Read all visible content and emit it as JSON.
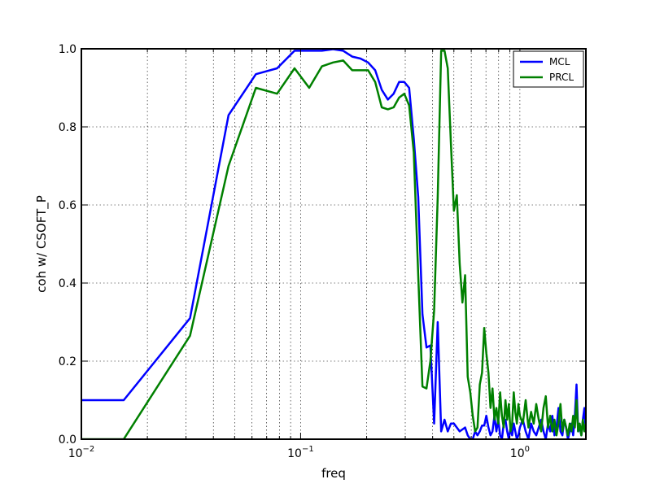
{
  "chart_data": {
    "type": "line",
    "xlabel": "freq",
    "ylabel": "coh w/ CSOFT_P",
    "xscale": "log",
    "xlim": [
      0.01,
      2.0
    ],
    "ylim": [
      0.0,
      1.0
    ],
    "grid": true,
    "legend_position": "top-right",
    "x_major_ticks": [
      {
        "value": 0.01,
        "base": "10",
        "exp": "−2"
      },
      {
        "value": 0.1,
        "base": "10",
        "exp": "−1"
      },
      {
        "value": 1.0,
        "base": "10",
        "exp": "0"
      }
    ],
    "y_ticks": [
      {
        "value": 0.0,
        "label": "0.0"
      },
      {
        "value": 0.2,
        "label": "0.2"
      },
      {
        "value": 0.4,
        "label": "0.4"
      },
      {
        "value": 0.6,
        "label": "0.6"
      },
      {
        "value": 0.8,
        "label": "0.8"
      },
      {
        "value": 1.0,
        "label": "1.0"
      }
    ],
    "series": [
      {
        "name": "MCL",
        "color": "#0000ff",
        "points": [
          [
            0.01,
            0.1
          ],
          [
            0.0156,
            0.1
          ],
          [
            0.0313,
            0.31
          ],
          [
            0.0469,
            0.83
          ],
          [
            0.0625,
            0.935
          ],
          [
            0.0781,
            0.95
          ],
          [
            0.0938,
            0.995
          ],
          [
            0.1094,
            0.995
          ],
          [
            0.125,
            0.995
          ],
          [
            0.1406,
            0.999
          ],
          [
            0.1563,
            0.995
          ],
          [
            0.1719,
            0.98
          ],
          [
            0.1875,
            0.975
          ],
          [
            0.2031,
            0.965
          ],
          [
            0.2188,
            0.945
          ],
          [
            0.2344,
            0.895
          ],
          [
            0.25,
            0.87
          ],
          [
            0.2656,
            0.885
          ],
          [
            0.2813,
            0.915
          ],
          [
            0.2969,
            0.915
          ],
          [
            0.3125,
            0.9
          ],
          [
            0.3281,
            0.77
          ],
          [
            0.3438,
            0.62
          ],
          [
            0.3594,
            0.32
          ],
          [
            0.375,
            0.235
          ],
          [
            0.3906,
            0.24
          ],
          [
            0.4063,
            0.04
          ],
          [
            0.4219,
            0.3
          ],
          [
            0.4375,
            0.02
          ],
          [
            0.4531,
            0.05
          ],
          [
            0.4688,
            0.02
          ],
          [
            0.4844,
            0.04
          ],
          [
            0.5,
            0.04
          ],
          [
            0.5156,
            0.03
          ],
          [
            0.5313,
            0.02
          ],
          [
            0.5469,
            0.025
          ],
          [
            0.5625,
            0.03
          ],
          [
            0.5781,
            0.01
          ],
          [
            0.5938,
            0.0
          ],
          [
            0.6094,
            0.0
          ],
          [
            0.625,
            0.02
          ],
          [
            0.6406,
            0.01
          ],
          [
            0.6563,
            0.02
          ],
          [
            0.6719,
            0.035
          ],
          [
            0.6875,
            0.035
          ],
          [
            0.7031,
            0.06
          ],
          [
            0.7188,
            0.03
          ],
          [
            0.7344,
            0.01
          ],
          [
            0.75,
            0.02
          ],
          [
            0.7656,
            0.06
          ],
          [
            0.7813,
            0.02
          ],
          [
            0.7969,
            0.05
          ],
          [
            0.8125,
            0.01
          ],
          [
            0.8281,
            0.0
          ],
          [
            0.8438,
            0.04
          ],
          [
            0.8594,
            0.05
          ],
          [
            0.875,
            0.02
          ],
          [
            0.8906,
            0.0
          ],
          [
            0.9063,
            0.03
          ],
          [
            0.9219,
            0.01
          ],
          [
            0.9375,
            0.04
          ],
          [
            0.9531,
            0.02
          ],
          [
            0.9688,
            0.0
          ],
          [
            0.9844,
            0.01
          ],
          [
            1.0,
            0.03
          ],
          [
            1.0313,
            0.05
          ],
          [
            1.0625,
            0.02
          ],
          [
            1.0938,
            0.0
          ],
          [
            1.125,
            0.04
          ],
          [
            1.1563,
            0.02
          ],
          [
            1.1875,
            0.01
          ],
          [
            1.2188,
            0.03
          ],
          [
            1.25,
            0.05
          ],
          [
            1.2813,
            0.02
          ],
          [
            1.3125,
            0.0
          ],
          [
            1.3438,
            0.04
          ],
          [
            1.375,
            0.02
          ],
          [
            1.4063,
            0.06
          ],
          [
            1.4375,
            0.01
          ],
          [
            1.4688,
            0.03
          ],
          [
            1.5,
            0.08
          ],
          [
            1.5313,
            0.02
          ],
          [
            1.5625,
            0.01
          ],
          [
            1.5938,
            0.05
          ],
          [
            1.625,
            0.03
          ],
          [
            1.6563,
            0.0
          ],
          [
            1.6875,
            0.02
          ],
          [
            1.7188,
            0.04
          ],
          [
            1.75,
            0.01
          ],
          [
            1.7813,
            0.06
          ],
          [
            1.8125,
            0.14
          ],
          [
            1.8438,
            0.02
          ],
          [
            1.875,
            0.03
          ],
          [
            1.9063,
            0.01
          ],
          [
            1.9375,
            0.05
          ],
          [
            1.9688,
            0.08
          ],
          [
            2.0,
            0.02
          ]
        ]
      },
      {
        "name": "PRCL",
        "color": "#008000",
        "points": [
          [
            0.01,
            0.0
          ],
          [
            0.0156,
            0.0
          ],
          [
            0.0313,
            0.265
          ],
          [
            0.0469,
            0.7
          ],
          [
            0.0625,
            0.9
          ],
          [
            0.0781,
            0.885
          ],
          [
            0.0938,
            0.95
          ],
          [
            0.1094,
            0.9
          ],
          [
            0.125,
            0.955
          ],
          [
            0.1406,
            0.965
          ],
          [
            0.1563,
            0.97
          ],
          [
            0.1719,
            0.945
          ],
          [
            0.1875,
            0.945
          ],
          [
            0.2031,
            0.945
          ],
          [
            0.2188,
            0.915
          ],
          [
            0.2344,
            0.85
          ],
          [
            0.25,
            0.845
          ],
          [
            0.2656,
            0.85
          ],
          [
            0.2813,
            0.875
          ],
          [
            0.2969,
            0.885
          ],
          [
            0.3125,
            0.855
          ],
          [
            0.3281,
            0.735
          ],
          [
            0.3438,
            0.42
          ],
          [
            0.3594,
            0.135
          ],
          [
            0.375,
            0.13
          ],
          [
            0.3906,
            0.2
          ],
          [
            0.4063,
            0.33
          ],
          [
            0.4219,
            0.62
          ],
          [
            0.4375,
            0.995
          ],
          [
            0.4531,
            0.995
          ],
          [
            0.4688,
            0.95
          ],
          [
            0.4844,
            0.76
          ],
          [
            0.5,
            0.585
          ],
          [
            0.5156,
            0.625
          ],
          [
            0.5313,
            0.45
          ],
          [
            0.5469,
            0.35
          ],
          [
            0.5625,
            0.42
          ],
          [
            0.5781,
            0.16
          ],
          [
            0.5938,
            0.12
          ],
          [
            0.6094,
            0.06
          ],
          [
            0.625,
            0.02
          ],
          [
            0.6406,
            0.03
          ],
          [
            0.6563,
            0.14
          ],
          [
            0.6719,
            0.17
          ],
          [
            0.6875,
            0.285
          ],
          [
            0.7031,
            0.22
          ],
          [
            0.7188,
            0.17
          ],
          [
            0.7344,
            0.08
          ],
          [
            0.75,
            0.13
          ],
          [
            0.7656,
            0.05
          ],
          [
            0.7813,
            0.08
          ],
          [
            0.7969,
            0.04
          ],
          [
            0.8125,
            0.12
          ],
          [
            0.8281,
            0.06
          ],
          [
            0.8438,
            0.03
          ],
          [
            0.8594,
            0.1
          ],
          [
            0.875,
            0.05
          ],
          [
            0.8906,
            0.09
          ],
          [
            0.9063,
            0.02
          ],
          [
            0.9219,
            0.04
          ],
          [
            0.9375,
            0.12
          ],
          [
            0.9531,
            0.07
          ],
          [
            0.9688,
            0.04
          ],
          [
            0.9844,
            0.09
          ],
          [
            1.0,
            0.06
          ],
          [
            1.0313,
            0.04
          ],
          [
            1.0625,
            0.1
          ],
          [
            1.0938,
            0.03
          ],
          [
            1.125,
            0.07
          ],
          [
            1.1563,
            0.04
          ],
          [
            1.1875,
            0.09
          ],
          [
            1.2188,
            0.05
          ],
          [
            1.25,
            0.02
          ],
          [
            1.2813,
            0.08
          ],
          [
            1.3125,
            0.11
          ],
          [
            1.3438,
            0.03
          ],
          [
            1.375,
            0.06
          ],
          [
            1.4063,
            0.02
          ],
          [
            1.4375,
            0.05
          ],
          [
            1.4688,
            0.01
          ],
          [
            1.5,
            0.04
          ],
          [
            1.5313,
            0.09
          ],
          [
            1.5625,
            0.02
          ],
          [
            1.5938,
            0.05
          ],
          [
            1.625,
            0.03
          ],
          [
            1.6563,
            0.01
          ],
          [
            1.6875,
            0.04
          ],
          [
            1.7188,
            0.02
          ],
          [
            1.75,
            0.06
          ],
          [
            1.7813,
            0.03
          ],
          [
            1.8125,
            0.1
          ],
          [
            1.8438,
            0.02
          ],
          [
            1.875,
            0.04
          ],
          [
            1.9063,
            0.01
          ],
          [
            1.9375,
            0.05
          ],
          [
            1.9688,
            0.02
          ],
          [
            2.0,
            0.04
          ]
        ]
      }
    ]
  }
}
